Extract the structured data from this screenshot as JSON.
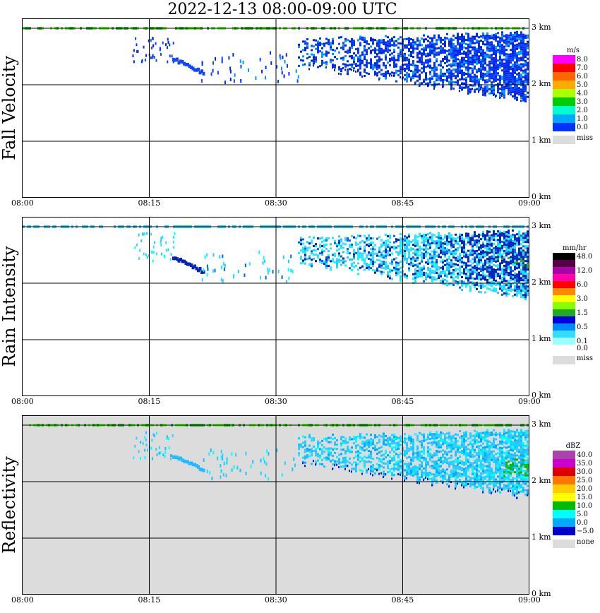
{
  "title": "2022-12-13   08:00-09:00 UTC",
  "x_ticks": [
    "08:00",
    "08:15",
    "08:30",
    "08:45",
    "09:00"
  ],
  "y_ticks": [
    "0 km",
    "1 km",
    "2 km",
    "3 km"
  ],
  "panels": [
    {
      "id": "fall-velocity",
      "label": "Fall Velocity",
      "background": "#ffffff",
      "legend": {
        "unit": "m/s",
        "colors": [
          "#ff00ff",
          "#ff0000",
          "#ff6600",
          "#ffaa00",
          "#aaff00",
          "#00cc00",
          "#00ffcc",
          "#00aaff",
          "#0033ff"
        ],
        "labels": [
          "8.0",
          "7.0",
          "6.0",
          "5.0",
          "4.0",
          "3.0",
          "2.0",
          "1.0",
          "0.0"
        ],
        "missing_label": "miss",
        "missing_color": "#dcdcdc"
      }
    },
    {
      "id": "rain-intensity",
      "label": "Rain Intensity",
      "background": "#ffffff",
      "legend": {
        "unit": "mm/hr",
        "colors": [
          "#000000",
          "#550044",
          "#aa00aa",
          "#ff00aa",
          "#ff0000",
          "#ff8800",
          "#ffff00",
          "#88ff00",
          "#22aa22",
          "#0000dd",
          "#0088ff",
          "#33ddff",
          "#99ffff",
          "#ffffff"
        ],
        "labels": [
          "48.0",
          "",
          "12.0",
          "",
          "6.0",
          "",
          "3.0",
          "",
          "1.5",
          "",
          "0.5",
          "",
          "0.1",
          "0.0"
        ],
        "missing_label": "miss",
        "missing_color": "#dcdcdc"
      }
    },
    {
      "id": "reflectivity",
      "label": "Reflectivity",
      "background": "#dcdcdc",
      "legend": {
        "unit": "dBZ",
        "colors": [
          "#aa44aa",
          "#cc00cc",
          "#dd0000",
          "#ff7700",
          "#ffcc00",
          "#ffff00",
          "#00bb00",
          "#00ffff",
          "#00aaff",
          "#0000cc"
        ],
        "labels": [
          "40.0",
          "35.0",
          "30.0",
          "25.0",
          "20.0",
          "15.0",
          "10.0",
          "5.0",
          "0.0",
          "−5.0"
        ],
        "missing_label": "none",
        "missing_color": "#dcdcdc"
      }
    }
  ],
  "chart_data": [
    {
      "type": "heatmap",
      "title": "2022-12-13   08:00-09:00 UTC",
      "ylabel": "Fall Velocity",
      "unit": "m/s",
      "x_range": [
        "08:00",
        "09:00"
      ],
      "ylim_km": [
        0,
        3.2
      ],
      "grid": true,
      "features": [
        {
          "desc": "bright band near top",
          "time": [
            "08:00",
            "09:00"
          ],
          "height_km": 3.0
        },
        {
          "desc": "sparse echoes",
          "time": [
            "08:13",
            "08:35"
          ],
          "height_km": [
            2.2,
            2.8
          ]
        },
        {
          "desc": "main precipitation layer",
          "time": [
            "08:33",
            "09:00"
          ],
          "height_km": [
            1.8,
            3.0
          ],
          "value": "0-2 m/s"
        }
      ]
    },
    {
      "type": "heatmap",
      "ylabel": "Rain Intensity",
      "unit": "mm/hr",
      "x_range": [
        "08:00",
        "09:00"
      ],
      "ylim_km": [
        0,
        3.2
      ],
      "grid": true,
      "features": [
        {
          "desc": "main precipitation layer",
          "time": [
            "08:33",
            "09:00"
          ],
          "height_km": [
            1.8,
            3.0
          ],
          "value": "0.1-1.5 mm/hr"
        }
      ]
    },
    {
      "type": "heatmap",
      "ylabel": "Reflectivity",
      "unit": "dBZ",
      "x_range": [
        "08:00",
        "09:00"
      ],
      "ylim_km": [
        0,
        3.2
      ],
      "grid": true,
      "features": [
        {
          "desc": "main precipitation layer",
          "time": [
            "08:33",
            "09:00"
          ],
          "height_km": [
            1.8,
            3.0
          ],
          "value": "0-15 dBZ"
        }
      ]
    }
  ]
}
